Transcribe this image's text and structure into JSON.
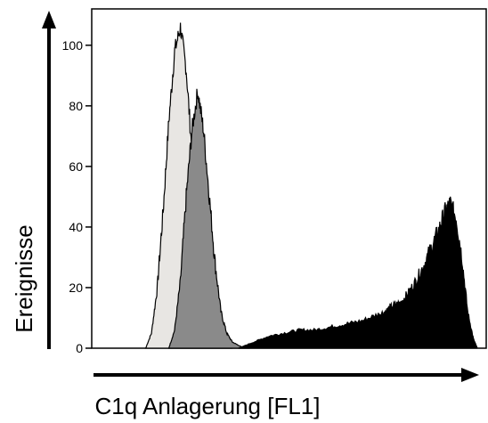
{
  "chart_data": {
    "type": "area",
    "xlabel": "C1q Anlagerung [FL1]",
    "ylabel": "Ereignisse",
    "ylim": [
      0,
      112
    ],
    "xlim": [
      0,
      1023
    ],
    "yticks": [
      0,
      20,
      40,
      60,
      80,
      100
    ],
    "grid": false,
    "series": [
      {
        "fill": "#e8e6e3",
        "x": [
          140,
          155,
          170,
          185,
          200,
          215,
          230,
          245,
          260,
          275,
          290,
          305,
          320,
          335,
          350,
          365
        ],
        "values": [
          0,
          5,
          20,
          45,
          75,
          98,
          106,
          92,
          65,
          35,
          12,
          4,
          1,
          0,
          0,
          0
        ]
      },
      {
        "fill": "#8a8a8a",
        "x": [
          200,
          215,
          230,
          245,
          260,
          275,
          290,
          305,
          320,
          335,
          350,
          365,
          380,
          395,
          410
        ],
        "values": [
          0,
          6,
          22,
          50,
          72,
          85,
          72,
          50,
          28,
          12,
          5,
          2,
          1,
          0,
          0
        ]
      },
      {
        "fill": "#000000",
        "x": [
          380,
          420,
          460,
          500,
          540,
          580,
          620,
          660,
          700,
          740,
          760,
          780,
          800,
          820,
          840,
          860,
          880,
          900,
          915,
          930,
          945,
          960,
          975,
          990,
          1000
        ],
        "values": [
          0,
          2,
          4,
          5,
          6,
          6,
          7,
          8,
          9,
          11,
          12,
          14,
          15,
          18,
          22,
          27,
          33,
          39,
          45,
          48,
          43,
          30,
          12,
          3,
          0
        ]
      }
    ]
  }
}
